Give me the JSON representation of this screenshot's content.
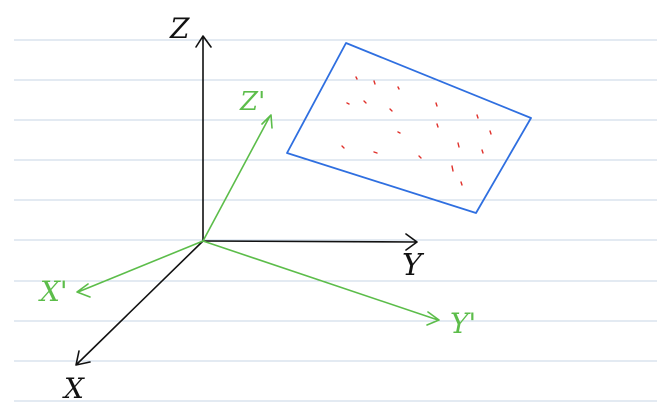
{
  "diagram": {
    "world_axes": {
      "x_label": "X",
      "y_label": "Y",
      "z_label": "Z"
    },
    "camera_axes": {
      "x_label": "X'",
      "y_label": "Y'",
      "z_label": "Z'"
    },
    "colors": {
      "world_axes": "#111111",
      "camera_axes": "#5cbd4a",
      "plane_outline": "#2f6fe0",
      "points": "#e0302a",
      "ruled_lines": "#c7d6e6"
    }
  }
}
